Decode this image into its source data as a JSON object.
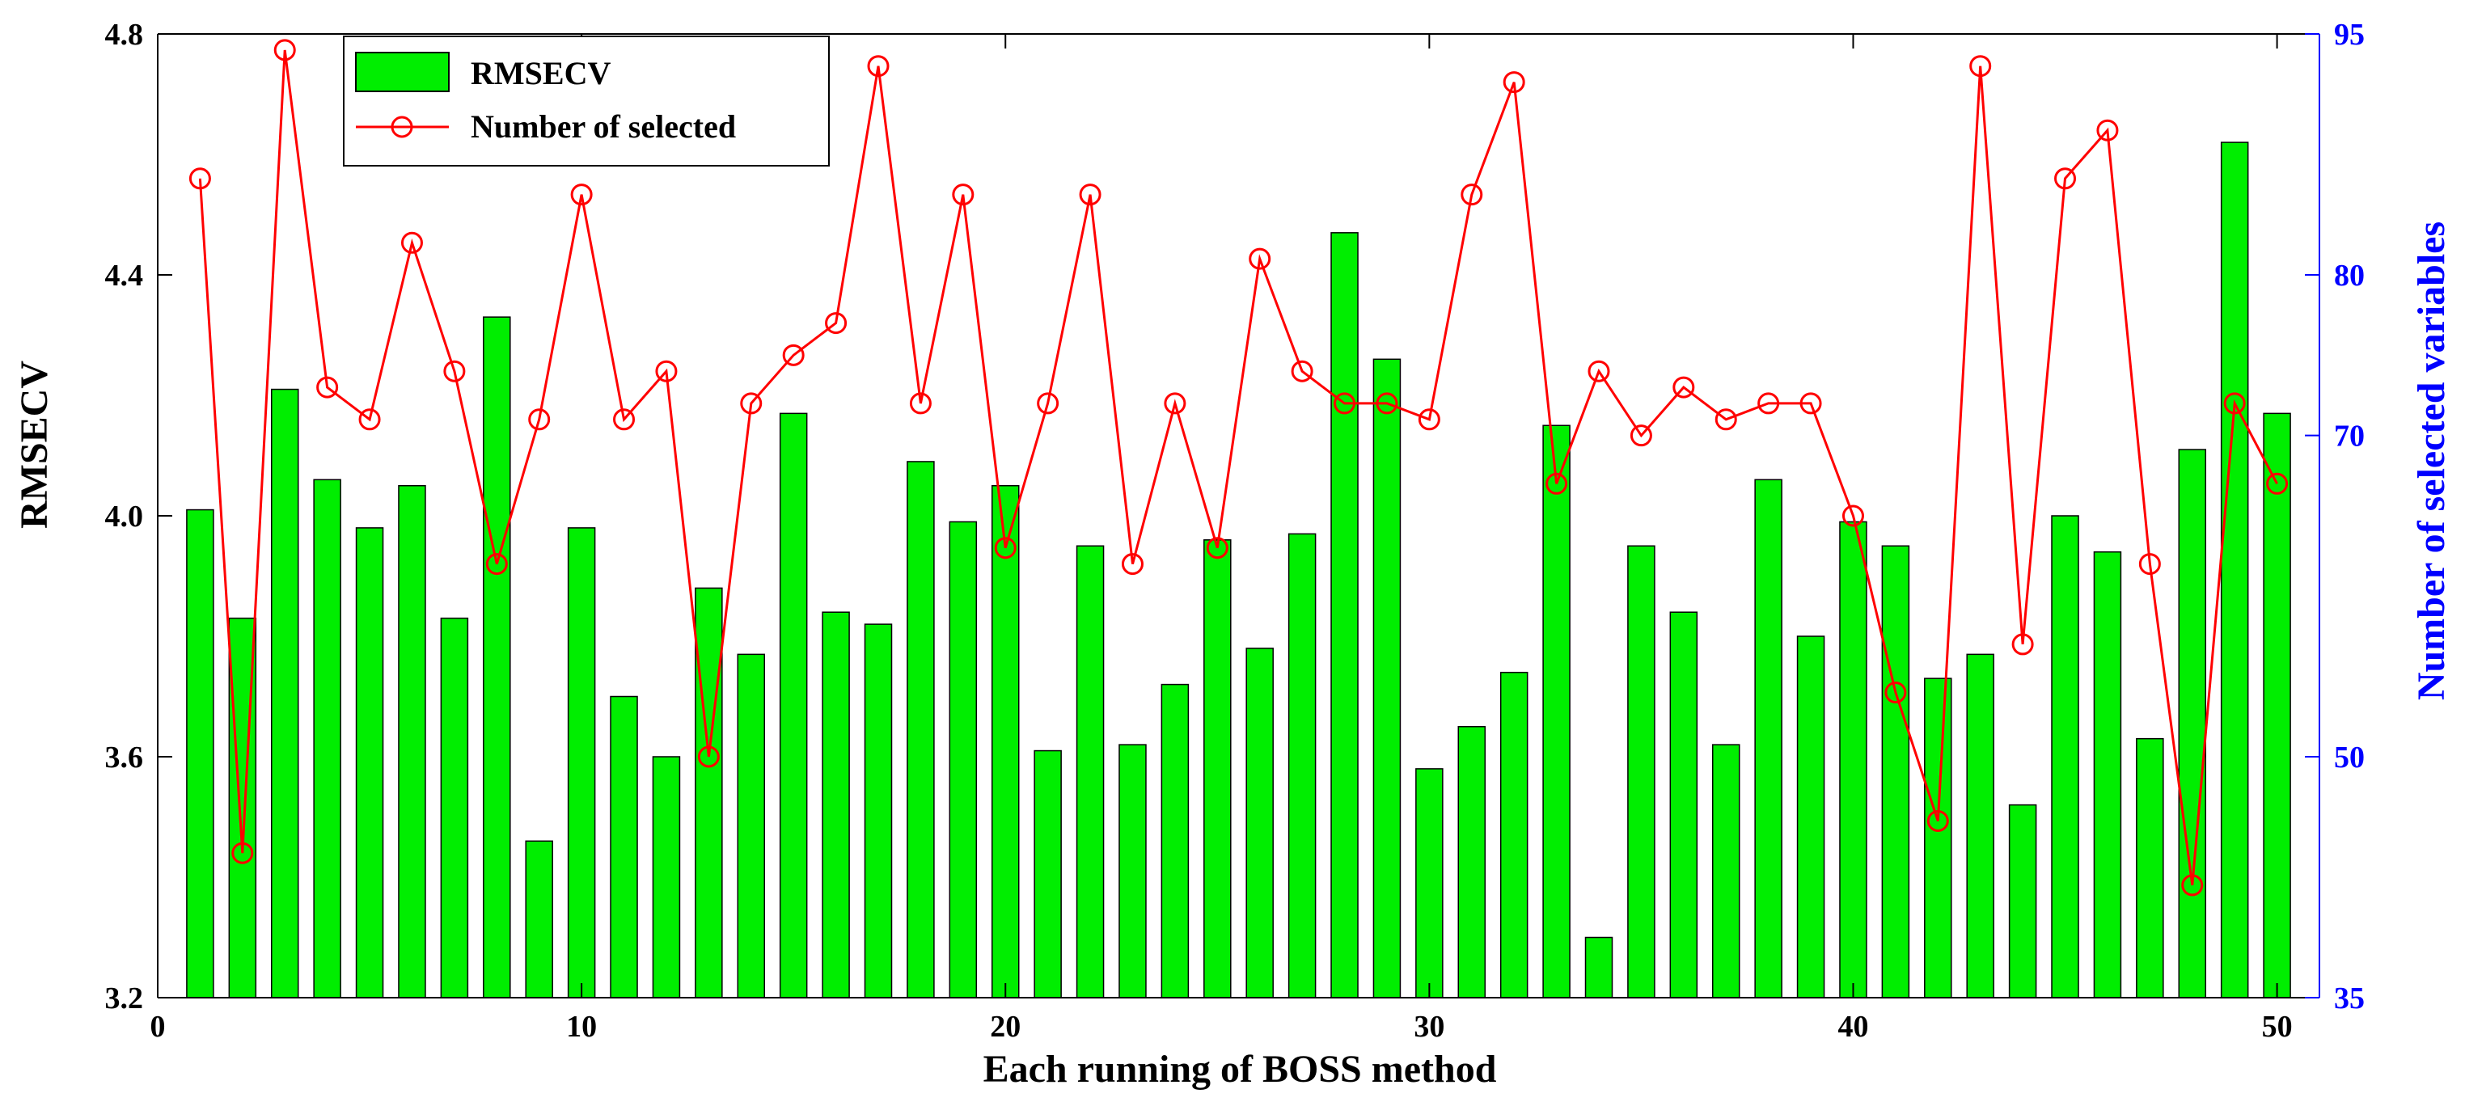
{
  "chart_data": {
    "type": "bar+line",
    "title": "",
    "xlabel": "Each running of BOSS method",
    "ylabel": "RMSECV",
    "y2label": "Number of selected variables",
    "xlim": [
      0,
      51
    ],
    "ylim": [
      3.2,
      4.8
    ],
    "y2lim": [
      35,
      95
    ],
    "xticks": [
      0,
      10,
      20,
      30,
      40,
      50
    ],
    "yticks": [
      "3.2",
      "3.6",
      "4.0",
      "4.4",
      "4.8"
    ],
    "y2ticks": [
      "35",
      "50",
      "70",
      "80",
      "95"
    ],
    "x": [
      1,
      2,
      3,
      4,
      5,
      6,
      7,
      8,
      9,
      10,
      11,
      12,
      13,
      14,
      15,
      16,
      17,
      18,
      19,
      20,
      21,
      22,
      23,
      24,
      25,
      26,
      27,
      28,
      29,
      30,
      31,
      32,
      33,
      34,
      35,
      36,
      37,
      38,
      39,
      40,
      41,
      42,
      43,
      44,
      45,
      46,
      47,
      48,
      49,
      50
    ],
    "series": [
      {
        "name": "RMSECV",
        "type": "bar",
        "axis": "left",
        "color": "#00ee00",
        "values": [
          4.01,
          3.83,
          4.21,
          4.06,
          3.98,
          4.05,
          3.83,
          4.33,
          3.46,
          3.98,
          3.7,
          3.6,
          3.88,
          3.77,
          4.17,
          3.84,
          3.82,
          4.09,
          3.99,
          4.05,
          3.61,
          3.95,
          3.62,
          3.72,
          3.96,
          3.78,
          3.97,
          4.47,
          4.26,
          3.58,
          3.65,
          3.74,
          4.15,
          3.3,
          3.95,
          3.84,
          3.62,
          4.06,
          3.8,
          3.99,
          3.95,
          3.73,
          3.77,
          3.52,
          4.0,
          3.94,
          3.63,
          4.11,
          4.62,
          4.17
        ]
      },
      {
        "name": "Number of selected",
        "type": "line",
        "axis": "right",
        "color": "#ff0000",
        "marker": "circle",
        "values": [
          86,
          44,
          94,
          73,
          71,
          82,
          74,
          62,
          71,
          85,
          71,
          74,
          50,
          72,
          75,
          77,
          93,
          72,
          85,
          63,
          72,
          85,
          62,
          72,
          63,
          81,
          74,
          72,
          72,
          71,
          85,
          92,
          67,
          74,
          70,
          73,
          71,
          72,
          72,
          65,
          54,
          46,
          93,
          57,
          86,
          89,
          62,
          42,
          72,
          67
        ]
      }
    ],
    "legend": {
      "position": "top-left",
      "entries": [
        "RMSECV",
        "Number of selected"
      ]
    },
    "colors": {
      "left_axis": "#000000",
      "right_axis": "#0000ff",
      "bars": "#00ee00",
      "line": "#ff0000"
    }
  }
}
